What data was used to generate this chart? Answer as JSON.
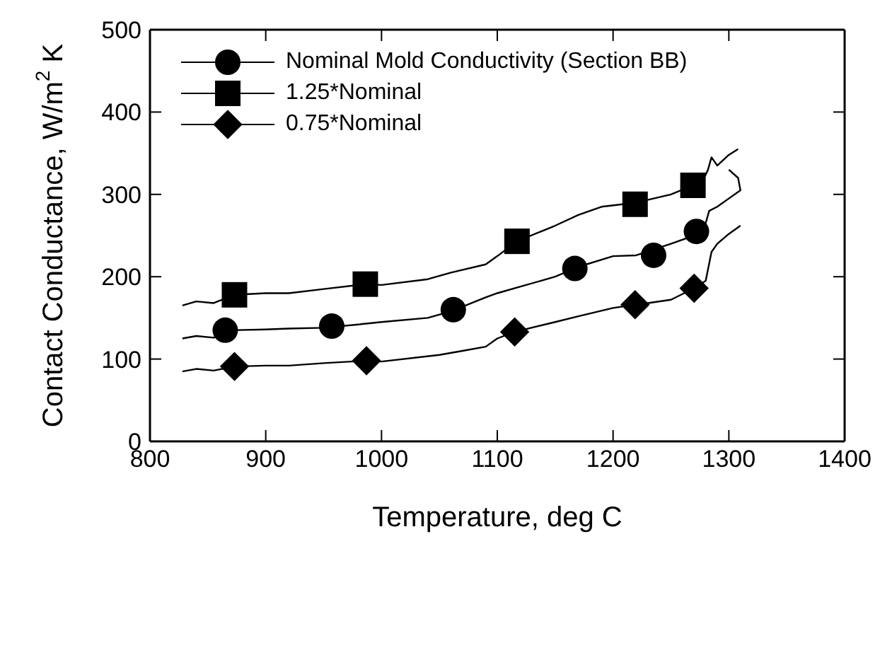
{
  "chart_data": {
    "type": "line",
    "xlabel": "Temperature, deg C",
    "ylabel": "Contact Conductance, W/m$^{2}$ K",
    "xlim": [
      800,
      1400
    ],
    "xticks": [
      800,
      900,
      1000,
      1100,
      1200,
      1300,
      1400
    ],
    "ylim": [
      0,
      500
    ],
    "yticks": [
      0,
      100,
      200,
      300,
      400,
      500
    ],
    "legend": "top left",
    "series": [
      {
        "color": "#000000",
        "marker": "none",
        "x": [
          828,
          840,
          855,
          870,
          900,
          920,
          950,
          980,
          1000,
          1040,
          1060,
          1090,
          1100,
          1120,
          1150,
          1170,
          1200,
          1220,
          1250,
          1270,
          1280,
          1283,
          1290,
          1300,
          1310,
          1308,
          1300
        ],
        "values": [
          125,
          128,
          126,
          135,
          136,
          137,
          138,
          142,
          145,
          150,
          158,
          175,
          180,
          188,
          200,
          212,
          225,
          226,
          240,
          250,
          265,
          280,
          285,
          295,
          305,
          320,
          330
        ]
      },
      {
        "type": "scatter",
        "name": "Nominal Mold Conductivity (Section BB)",
        "color": "#000000",
        "marker": "circle",
        "x": [
          865,
          957,
          1062,
          1167,
          1235,
          1272
        ],
        "values": [
          135,
          140,
          160,
          210,
          226,
          255
        ]
      },
      {
        "color": "#000000",
        "marker": "none",
        "x": [
          828,
          840,
          855,
          873,
          900,
          920,
          950,
          986,
          1000,
          1040,
          1060,
          1090,
          1100,
          1117,
          1150,
          1170,
          1190,
          1220,
          1250,
          1269,
          1278,
          1282,
          1285,
          1290,
          1300,
          1308
        ],
        "values": [
          165,
          170,
          168,
          178,
          180,
          180,
          185,
          191,
          190,
          197,
          205,
          215,
          225,
          243,
          262,
          275,
          285,
          290,
          300,
          311,
          318,
          330,
          345,
          335,
          348,
          355
        ]
      },
      {
        "type": "scatter",
        "name": "1.25*Nominal",
        "color": "#000000",
        "marker": "square",
        "x": [
          873,
          986,
          1117,
          1219,
          1269
        ],
        "values": [
          178,
          191,
          243,
          288,
          311
        ]
      },
      {
        "color": "#000000",
        "marker": "none",
        "x": [
          828,
          840,
          855,
          873,
          900,
          920,
          950,
          987,
          1000,
          1050,
          1070,
          1090,
          1100,
          1115,
          1150,
          1170,
          1200,
          1219,
          1230,
          1250,
          1270,
          1280,
          1285,
          1290,
          1300,
          1310
        ],
        "values": [
          85,
          88,
          86,
          91,
          92,
          92,
          95,
          98,
          97,
          105,
          110,
          115,
          125,
          133,
          145,
          152,
          162,
          166,
          168,
          172,
          186,
          195,
          230,
          240,
          252,
          262
        ]
      },
      {
        "type": "scatter",
        "name": "0.75*Nominal",
        "color": "#000000",
        "marker": "diamond",
        "x": [
          873,
          987,
          1115,
          1219,
          1270
        ],
        "values": [
          91,
          98,
          133,
          166,
          186
        ]
      }
    ]
  }
}
